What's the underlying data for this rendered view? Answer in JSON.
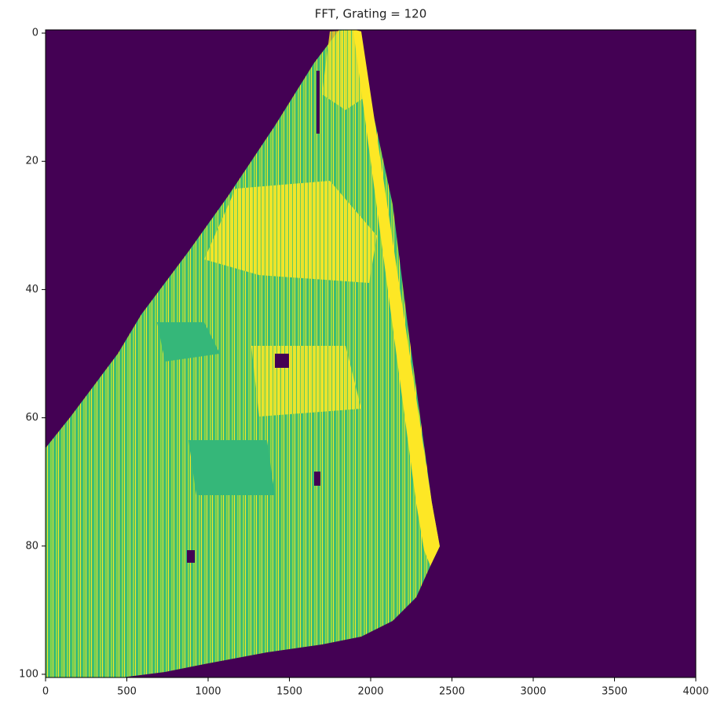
{
  "chart_data": {
    "type": "heatmap",
    "title": "FFT, Grating = 120",
    "xlim": [
      0,
      4000
    ],
    "xticks": [
      0,
      500,
      1000,
      1500,
      2000,
      2500,
      3000,
      3500,
      4000
    ],
    "ylim": [
      -0.5,
      100.5
    ],
    "yticks": [
      0,
      20,
      40,
      60,
      80,
      100
    ],
    "y_inverted": true,
    "background_color": "#440154"
  }
}
